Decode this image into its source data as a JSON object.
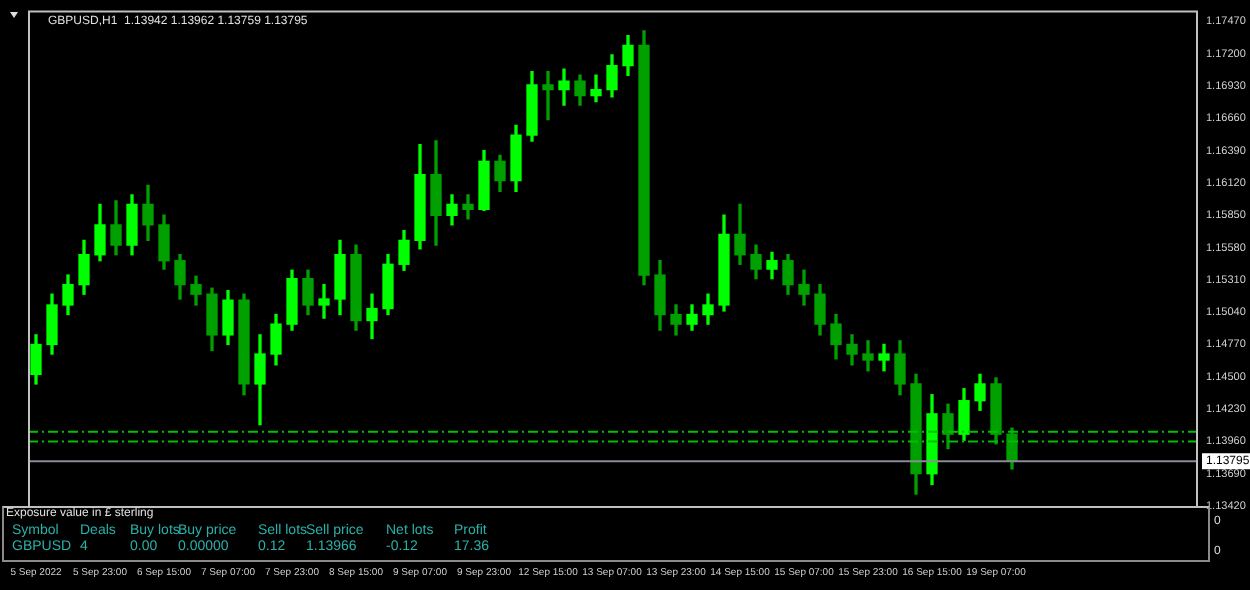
{
  "chart_data": {
    "type": "candlestick",
    "title": "GBPUSD,H1  1.13942 1.13962 1.13759 1.13795",
    "categories": [
      "5 Sep 2022",
      null,
      null,
      null,
      "5 Sep 23:00",
      null,
      null,
      null,
      "6 Sep 15:00",
      null,
      null,
      null,
      "7 Sep 07:00",
      null,
      null,
      null,
      "7 Sep 23:00",
      null,
      null,
      null,
      "8 Sep 15:00",
      null,
      null,
      null,
      "9 Sep 07:00",
      null,
      null,
      null,
      "9 Sep 23:00",
      null,
      null,
      null,
      "12 Sep 15:00",
      null,
      null,
      null,
      "13 Sep 07:00",
      null,
      null,
      null,
      "13 Sep 23:00",
      null,
      null,
      null,
      "14 Sep 15:00",
      null,
      null,
      null,
      "15 Sep 07:00",
      null,
      null,
      null,
      "15 Sep 23:00",
      null,
      null,
      null,
      "16 Sep 15:00",
      null,
      null,
      null,
      "19 Sep 07:00",
      null,
      null,
      null,
      null,
      null,
      null,
      null,
      null,
      null,
      null,
      null,
      null
    ],
    "ohlc": [
      [
        1.1452,
        1.1485,
        1.1444,
        1.1477
      ],
      [
        1.1477,
        1.1519,
        1.1469,
        1.151
      ],
      [
        1.151,
        1.1535,
        1.1502,
        1.1527
      ],
      [
        1.1527,
        1.1564,
        1.1519,
        1.1552
      ],
      [
        1.1552,
        1.1594,
        1.1547,
        1.1577
      ],
      [
        1.1577,
        1.1597,
        1.1552,
        1.156
      ],
      [
        1.156,
        1.1602,
        1.1552,
        1.1594
      ],
      [
        1.1594,
        1.161,
        1.1564,
        1.1577
      ],
      [
        1.1577,
        1.1585,
        1.154,
        1.1547
      ],
      [
        1.1547,
        1.1552,
        1.1515,
        1.1527
      ],
      [
        1.1527,
        1.1534,
        1.151,
        1.1519
      ],
      [
        1.1519,
        1.1524,
        1.1472,
        1.1485
      ],
      [
        1.1485,
        1.1522,
        1.1477,
        1.1514
      ],
      [
        1.1514,
        1.1519,
        1.1435,
        1.1444
      ],
      [
        1.1444,
        1.1485,
        1.141,
        1.1469
      ],
      [
        1.1469,
        1.1502,
        1.146,
        1.1494
      ],
      [
        1.1494,
        1.1539,
        1.1489,
        1.1532
      ],
      [
        1.1532,
        1.1539,
        1.1502,
        1.151
      ],
      [
        1.151,
        1.1527,
        1.1499,
        1.1515
      ],
      [
        1.1515,
        1.1564,
        1.1502,
        1.1552
      ],
      [
        1.1552,
        1.156,
        1.1489,
        1.1497
      ],
      [
        1.1497,
        1.1519,
        1.1482,
        1.1507
      ],
      [
        1.1507,
        1.1552,
        1.1502,
        1.1544
      ],
      [
        1.1544,
        1.1572,
        1.1539,
        1.1564
      ],
      [
        1.1564,
        1.1644,
        1.1557,
        1.1619
      ],
      [
        1.1619,
        1.1647,
        1.156,
        1.1585
      ],
      [
        1.1585,
        1.1602,
        1.1577,
        1.1594
      ],
      [
        1.1594,
        1.1602,
        1.1582,
        1.159
      ],
      [
        1.159,
        1.1639,
        1.1589,
        1.163
      ],
      [
        1.163,
        1.1635,
        1.1605,
        1.1614
      ],
      [
        1.1614,
        1.166,
        1.1605,
        1.1652
      ],
      [
        1.1652,
        1.1705,
        1.1647,
        1.1694
      ],
      [
        1.1694,
        1.1705,
        1.1665,
        1.169
      ],
      [
        1.169,
        1.1707,
        1.1677,
        1.1697
      ],
      [
        1.1697,
        1.1702,
        1.1677,
        1.1685
      ],
      [
        1.1685,
        1.1702,
        1.168,
        1.169
      ],
      [
        1.169,
        1.1719,
        1.1684,
        1.171
      ],
      [
        1.171,
        1.1735,
        1.1702,
        1.1727
      ],
      [
        1.1727,
        1.1739,
        1.1527,
        1.1535
      ],
      [
        1.1535,
        1.1547,
        1.1489,
        1.1502
      ],
      [
        1.1502,
        1.151,
        1.1485,
        1.1494
      ],
      [
        1.1494,
        1.151,
        1.1489,
        1.1502
      ],
      [
        1.1502,
        1.1519,
        1.1494,
        1.151
      ],
      [
        1.151,
        1.1585,
        1.1505,
        1.1569
      ],
      [
        1.1569,
        1.1594,
        1.1544,
        1.1552
      ],
      [
        1.1552,
        1.156,
        1.1532,
        1.154
      ],
      [
        1.154,
        1.1554,
        1.1532,
        1.1547
      ],
      [
        1.1547,
        1.1552,
        1.1519,
        1.1527
      ],
      [
        1.1527,
        1.1539,
        1.151,
        1.1519
      ],
      [
        1.1519,
        1.1527,
        1.1485,
        1.1494
      ],
      [
        1.1494,
        1.1502,
        1.1465,
        1.1477
      ],
      [
        1.1477,
        1.1485,
        1.146,
        1.1469
      ],
      [
        1.1469,
        1.148,
        1.1455,
        1.1464
      ],
      [
        1.1464,
        1.1477,
        1.1455,
        1.1469
      ],
      [
        1.1469,
        1.148,
        1.1435,
        1.1444
      ],
      [
        1.1444,
        1.1452,
        1.1352,
        1.1369
      ],
      [
        1.1369,
        1.1435,
        1.136,
        1.1419
      ],
      [
        1.1419,
        1.1427,
        1.139,
        1.1402
      ],
      [
        1.1402,
        1.144,
        1.1397,
        1.143
      ],
      [
        1.143,
        1.1452,
        1.1422,
        1.1444
      ],
      [
        1.1444,
        1.1449,
        1.1394,
        1.1402
      ],
      [
        1.1402,
        1.1407,
        1.1373,
        1.138
      ],
      null,
      null,
      null,
      null,
      null,
      null,
      null,
      null,
      null,
      null,
      null
    ],
    "colors": [
      "#00ff00",
      "#00ff00",
      "#00ff00",
      "#00ff00",
      "#00ff00",
      "#00a000",
      "#00ff00",
      "#00a000",
      "#00a000",
      "#00a000",
      "#00a000",
      "#00a000",
      "#00ff00",
      "#00a000",
      "#00ff00",
      "#00ff00",
      "#00ff00",
      "#00a000",
      "#00ff00",
      "#00ff00",
      "#00a000",
      "#00ff00",
      "#00ff00",
      "#00ff00",
      "#00ff00",
      "#00a000",
      "#00ff00",
      "#00a000",
      "#00ff00",
      "#00a000",
      "#00ff00",
      "#00ff00",
      "#00a000",
      "#00ff00",
      "#00a000",
      "#00ff00",
      "#00ff00",
      "#00ff00",
      "#00a000",
      "#00a000",
      "#00a000",
      "#00ff00",
      "#00ff00",
      "#00ff00",
      "#00a000",
      "#00a000",
      "#00ff00",
      "#00a000",
      "#00a000",
      "#00a000",
      "#00a000",
      "#00a000",
      "#00a000",
      "#00ff00",
      "#00a000",
      "#00a000",
      "#00ff00",
      "#00a000",
      "#00ff00",
      "#00ff00",
      "#00a000",
      "#00a000",
      null,
      null,
      null,
      null,
      null,
      null,
      null,
      null,
      null,
      null,
      null
    ],
    "ylim": [
      1.1342,
      1.1756
    ],
    "yticks": [
      {
        "value": 1.1342,
        "label": "1.13420"
      },
      {
        "value": 1.1369,
        "label": "1.13690"
      },
      {
        "value": 1.1396,
        "label": "1.13960"
      },
      {
        "value": 1.1423,
        "label": "1.14230"
      },
      {
        "value": 1.145,
        "label": "1.14500"
      },
      {
        "value": 1.1477,
        "label": "1.14770"
      },
      {
        "value": 1.1504,
        "label": "1.15040"
      },
      {
        "value": 1.1531,
        "label": "1.15310"
      },
      {
        "value": 1.1558,
        "label": "1.15580"
      },
      {
        "value": 1.1585,
        "label": "1.15850"
      },
      {
        "value": 1.1612,
        "label": "1.16120"
      },
      {
        "value": 1.1639,
        "label": "1.16390"
      },
      {
        "value": 1.1666,
        "label": "1.16660"
      },
      {
        "value": 1.1693,
        "label": "1.16930"
      },
      {
        "value": 1.172,
        "label": "1.17200"
      },
      {
        "value": 1.1747,
        "label": "1.17470"
      }
    ],
    "ref_lines": [
      {
        "axis": "y",
        "value": 1.1404,
        "color": "#00c000",
        "line_style": "dashed"
      },
      {
        "axis": "y",
        "value": 1.1396,
        "color": "#00c000",
        "line_style": "dashed"
      },
      {
        "axis": "y",
        "value": 1.13795,
        "label": "1.13795",
        "color": "#8a8a9a",
        "line_style": "solid"
      }
    ],
    "annotations": [
      "Exposure value in £ sterling",
      "Symbol",
      "Deals",
      "Buy lots",
      "Buy price",
      "Sell lots",
      "Sell price",
      "Net lots",
      "Profit",
      "GBPUSD",
      "4",
      "0.00",
      "0.00000",
      "0.12",
      "1.13966",
      "-0.12",
      "17.36",
      "0",
      "0"
    ],
    "grid": false,
    "legend": false
  }
}
